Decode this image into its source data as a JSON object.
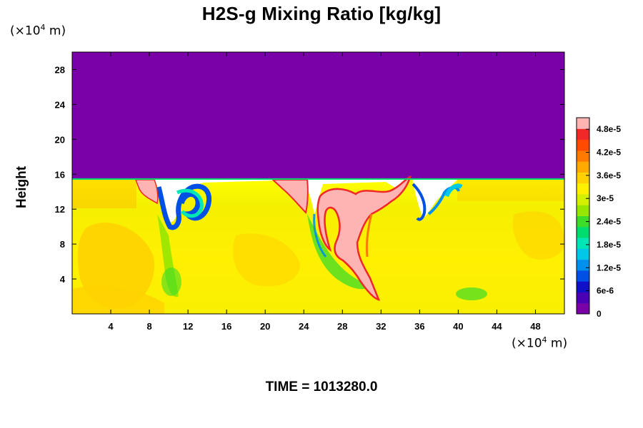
{
  "chart_data": {
    "type": "heatmap",
    "title": "H2S-g Mixing Ratio [kg/kg]",
    "ylabel": "Height",
    "xlabel": "",
    "x_unit_prefix": "(×10",
    "x_unit_exp": "4",
    "x_unit_suffix": " m)",
    "y_unit_prefix": "(×10",
    "y_unit_exp": "4",
    "y_unit_suffix": " m)",
    "xlim": [
      0,
      51
    ],
    "ylim": [
      0,
      30
    ],
    "x_ticks": [
      4,
      8,
      12,
      16,
      20,
      24,
      28,
      32,
      36,
      40,
      44,
      48
    ],
    "y_ticks": [
      4,
      8,
      12,
      16,
      20,
      24,
      28
    ],
    "colorbar": {
      "min": 0,
      "max": 5.1e-05,
      "tick_values": [
        0,
        6e-06,
        1.2e-05,
        1.8e-05,
        2.4e-05,
        3e-05,
        3.6e-05,
        4.2e-05,
        4.8e-05
      ],
      "tick_labels": [
        "0",
        "6e-6",
        "1.2e-5",
        "1.8e-5",
        "2.4e-5",
        "3e-5",
        "3.6e-5",
        "4.2e-5",
        "4.8e-5"
      ],
      "colors": [
        "#7a00a8",
        "#4a00b4",
        "#1010c8",
        "#0050e6",
        "#0090ee",
        "#00c8e6",
        "#00e6b4",
        "#00dc6e",
        "#3cdc28",
        "#96e600",
        "#d2f000",
        "#fff000",
        "#ffd200",
        "#ffaa00",
        "#ff7a00",
        "#ff4a00",
        "#f02828",
        "#ffb4b4"
      ]
    },
    "top_value_region": {
      "y_from": 15.6,
      "y_to": 30,
      "value": 0
    },
    "lower_region_typical_value": 3.6e-05,
    "features": [
      {
        "label": "high-concentration plume near x=30",
        "x": [
          26,
          33
        ],
        "y": [
          2,
          15
        ],
        "value": 5e-05
      },
      {
        "label": "depleted eddy near x=9-12",
        "x": [
          9,
          12
        ],
        "y": [
          10,
          15
        ],
        "value": 1.2e-05
      }
    ]
  },
  "time_label": "TIME = 1013280.0"
}
